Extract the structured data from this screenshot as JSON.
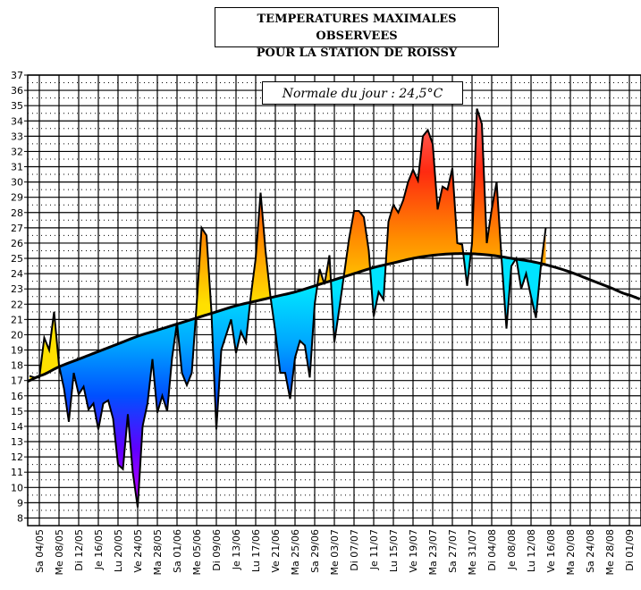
{
  "chart_data": {
    "type": "area",
    "title_line1": "TEMPERATURES MAXIMALES OBSERVEES",
    "title_line2": "POUR LA STATION DE ROISSY",
    "annotation": "Normale du jour : 24,5°C",
    "ylim": [
      7.5,
      37
    ],
    "yticks": [
      8,
      9,
      10,
      11,
      12,
      13,
      14,
      15,
      16,
      17,
      18,
      19,
      20,
      21,
      22,
      23,
      24,
      25,
      26,
      27,
      28,
      29,
      30,
      31,
      32,
      33,
      34,
      35,
      36,
      37
    ],
    "xticks": [
      "Sa 04/05",
      "Me 08/05",
      "Di 12/05",
      "Je 16/05",
      "Lu 20/05",
      "Ve 24/05",
      "Ma 28/05",
      "Sa 01/06",
      "Me 05/06",
      "Di 09/06",
      "Je 13/06",
      "Lu 17/06",
      "Ve 21/06",
      "Ma 25/06",
      "Sa 29/06",
      "Me 03/07",
      "Di 07/07",
      "Je 11/07",
      "Lu 15/07",
      "Ve 19/07",
      "Ma 23/07",
      "Sa 27/07",
      "Me 31/07",
      "Di 04/08",
      "Je 08/08",
      "Lu 12/08",
      "Ve 16/08",
      "Ma 20/08",
      "Sa 24/08",
      "Me 28/08",
      "Di 01/09"
    ],
    "grid": true,
    "observed": {
      "start_date": "02/05",
      "values": [
        17.3,
        17.2,
        17.2,
        19.8,
        19,
        21.5,
        18,
        16.5,
        14.3,
        17.5,
        16.1,
        16.6,
        15.1,
        15.5,
        13.8,
        15.5,
        15.7,
        14.5,
        11.5,
        11.2,
        14.8,
        11,
        8.7,
        14,
        15.5,
        18.4,
        14.9,
        16,
        15,
        18.5,
        20.8,
        17.5,
        16.7,
        17.5,
        22,
        27,
        26.5,
        21.5,
        13.8,
        19,
        20,
        21,
        18.8,
        20.2,
        19.5,
        22.5,
        25,
        29.3,
        25.5,
        22.5,
        20.2,
        17.5,
        17.5,
        15.8,
        18.5,
        19.6,
        19.3,
        17.2,
        22,
        24.3,
        23.3,
        25.2,
        19.5,
        21.7,
        24,
        26.3,
        28.1,
        28.1,
        27.7,
        25.5,
        21.2,
        22.8,
        22.3,
        27.4,
        28.5,
        28,
        28.8,
        30,
        30.8,
        30.1,
        33,
        33.4,
        32.5,
        28.2,
        29.7,
        29.5,
        30.9,
        26,
        25.9,
        23.2,
        26,
        34.8,
        33.8,
        26,
        28.2,
        30,
        25,
        20.4,
        24.5,
        25,
        23,
        24,
        22.5,
        21.1,
        24.5,
        27
      ]
    },
    "normal": {
      "dates": [
        "04/05",
        "08/05",
        "12/05",
        "16/05",
        "20/05",
        "24/05",
        "28/05",
        "01/06",
        "05/06",
        "09/06",
        "13/06",
        "17/06",
        "21/06",
        "25/06",
        "29/06",
        "03/07",
        "07/07",
        "11/07",
        "15/07",
        "19/07",
        "23/07",
        "27/07",
        "31/07",
        "04/08",
        "08/08",
        "12/08",
        "16/08",
        "20/08",
        "24/08",
        "28/08",
        "01/09"
      ],
      "values": [
        17.3,
        17.9,
        18.4,
        18.9,
        19.4,
        19.9,
        20.3,
        20.7,
        21.1,
        21.5,
        21.9,
        22.2,
        22.5,
        22.8,
        23.2,
        23.6,
        24.0,
        24.4,
        24.7,
        25.0,
        25.2,
        25.3,
        25.3,
        25.2,
        25.0,
        24.8,
        24.5,
        24.1,
        23.6,
        23.1,
        22.6
      ]
    },
    "colors": {
      "above_normal": [
        "#ffe000",
        "#ff8c00",
        "#ff2a10",
        "#ff7070"
      ],
      "below_normal": [
        "#00e4ff",
        "#00a8ff",
        "#0050ff",
        "#6000ff",
        "#c000ff"
      ],
      "normal_line": "#000000"
    }
  }
}
